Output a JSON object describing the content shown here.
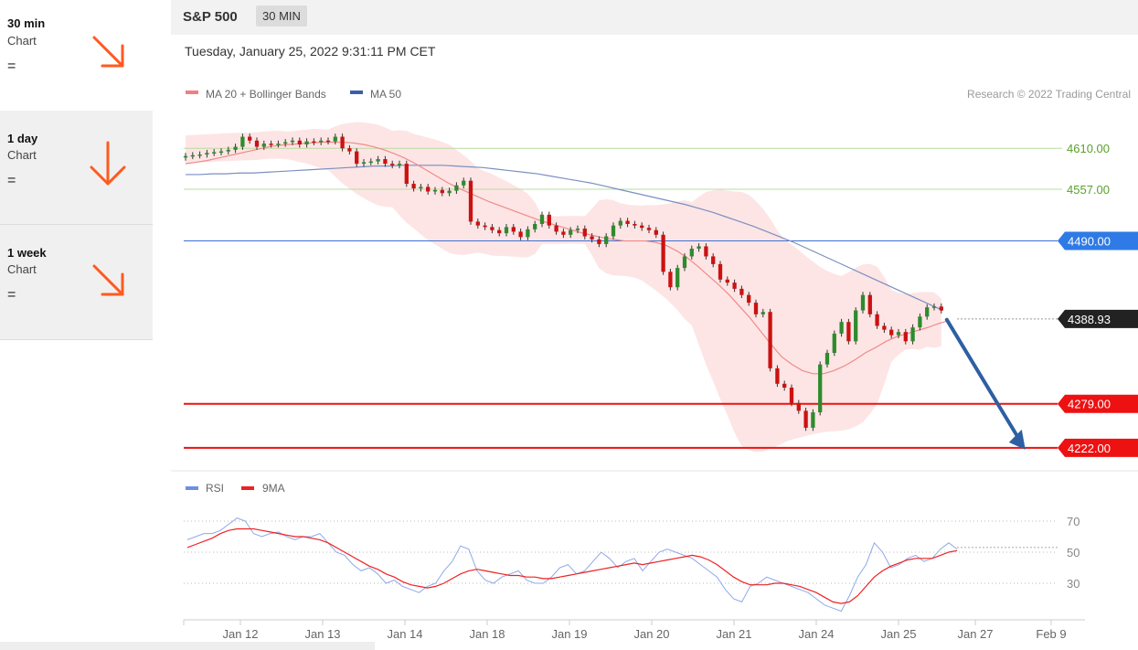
{
  "sidebar": {
    "items": [
      {
        "title": "30 min",
        "sub": "Chart",
        "sign": "=",
        "arrow": "arrow-down-right-icon"
      },
      {
        "title": "1 day",
        "sub": "Chart",
        "sign": "=",
        "arrow": "arrow-down-icon"
      },
      {
        "title": "1 week",
        "sub": "Chart",
        "sign": "=",
        "arrow": "arrow-down-right-icon"
      }
    ],
    "arrow_color": "#ff5a1f"
  },
  "header": {
    "title": "S&P 500",
    "timeframe": "30 MIN"
  },
  "chart_data": {
    "type": "candlestick",
    "timestamp": "Tuesday, January 25, 2022 9:31:11 PM CET",
    "credit": "Research © 2022 Trading Central",
    "legend": [
      {
        "name": "MA 20 + Bollinger Bands",
        "color": "#f08080"
      },
      {
        "name": "MA 50",
        "color": "#3b5ea8"
      }
    ],
    "ylim": [
      4210,
      4660
    ],
    "levels": [
      {
        "label": "4610.00",
        "value": 4610,
        "color": "#b8dca0",
        "text_color": "#5aa02c",
        "style": "flat"
      },
      {
        "label": "4557.00",
        "value": 4557,
        "color": "#b8dca0",
        "text_color": "#5aa02c",
        "style": "flat"
      },
      {
        "label": "4490.00",
        "value": 4490,
        "color": "#3f6fd4",
        "text_color": "#ffffff",
        "style": "tag",
        "fill": "#2e7ae6"
      },
      {
        "label": "4388.93",
        "value": 4388.93,
        "color": "#999999",
        "text_color": "#ffffff",
        "style": "tag",
        "fill": "#222222",
        "dashed": true
      },
      {
        "label": "4279.00",
        "value": 4279,
        "color": "#ee1111",
        "text_color": "#ffffff",
        "style": "tag",
        "fill": "#ee1111",
        "thick": true
      },
      {
        "label": "4222.00",
        "value": 4222,
        "color": "#ee1111",
        "text_color": "#ffffff",
        "style": "tag",
        "fill": "#ee1111",
        "thick": true
      }
    ],
    "projection": {
      "from_index": 94,
      "from_value": 4388,
      "to_value": 4222,
      "color": "#2e5fa3"
    },
    "x_ticks": [
      "Jan 12",
      "Jan 13",
      "Jan 14",
      "Jan 18",
      "Jan 19",
      "Jan 20",
      "Jan 21",
      "Jan 24",
      "Jan 25",
      "Jan 27",
      "Feb 9"
    ],
    "closes": [
      4600,
      4601,
      4602,
      4604,
      4605,
      4606,
      4608,
      4612,
      4625,
      4620,
      4612,
      4616,
      4615,
      4616,
      4618,
      4620,
      4615,
      4619,
      4618,
      4620,
      4619,
      4625,
      4610,
      4606,
      4590,
      4592,
      4593,
      4596,
      4590,
      4588,
      4590,
      4564,
      4558,
      4560,
      4554,
      4556,
      4552,
      4555,
      4562,
      4568,
      4515,
      4510,
      4508,
      4504,
      4500,
      4508,
      4502,
      4495,
      4505,
      4512,
      4524,
      4510,
      4502,
      4498,
      4504,
      4506,
      4496,
      4492,
      4486,
      4496,
      4510,
      4516,
      4512,
      4510,
      4507,
      4504,
      4498,
      4450,
      4430,
      4455,
      4470,
      4480,
      4483,
      4470,
      4460,
      4440,
      4436,
      4428,
      4420,
      4410,
      4395,
      4398,
      4325,
      4305,
      4300,
      4280,
      4270,
      4248,
      4268,
      4330,
      4345,
      4370,
      4385,
      4360,
      4400,
      4420,
      4395,
      4380,
      4375,
      4368,
      4372,
      4360,
      4378,
      4392,
      4404,
      4405,
      4400
    ],
    "ma20": [
      4590,
      4592,
      4594,
      4597,
      4600,
      4603,
      4606,
      4609,
      4612,
      4614,
      4615,
      4616,
      4617,
      4618,
      4618,
      4618,
      4617,
      4615,
      4612,
      4608,
      4603,
      4597,
      4590,
      4582,
      4574,
      4566,
      4559,
      4553,
      4547,
      4541,
      4536,
      4531,
      4526,
      4521,
      4516,
      4512,
      4508,
      4504,
      4500,
      4497,
      4494,
      4492,
      4490,
      4490,
      4490,
      4488,
      4484,
      4477,
      4468,
      4457,
      4445,
      4433,
      4420,
      4405,
      4390,
      4373,
      4356,
      4340,
      4330,
      4322,
      4318,
      4318,
      4322,
      4328,
      4336,
      4345,
      4352,
      4360,
      4366,
      4370,
      4374,
      4378,
      4383,
      4387
    ],
    "ma50": [
      4576,
      4576,
      4577,
      4577,
      4578,
      4578,
      4579,
      4580,
      4581,
      4582,
      4583,
      4584,
      4585,
      4586,
      4587,
      4587,
      4588,
      4588,
      4588,
      4588,
      4587,
      4586,
      4585,
      4583,
      4581,
      4579,
      4577,
      4574,
      4571,
      4568,
      4565,
      4561,
      4557,
      4553,
      4549,
      4545,
      4541,
      4537,
      4532,
      4527,
      4521,
      4515,
      4509,
      4502,
      4495,
      4488,
      4480,
      4472,
      4464,
      4456,
      4448,
      4440,
      4432,
      4424,
      4416,
      4408,
      4400
    ],
    "rsi": {
      "legend": [
        {
          "name": "RSI",
          "color": "#6f8fe0"
        },
        {
          "name": "9MA",
          "color": "#ee2222"
        }
      ],
      "ticks": [
        70,
        50,
        30
      ],
      "ylim": [
        10,
        80
      ],
      "values": [
        58,
        60,
        62,
        62,
        64,
        68,
        72,
        70,
        62,
        60,
        62,
        63,
        60,
        58,
        60,
        60,
        62,
        56,
        50,
        48,
        42,
        38,
        40,
        36,
        30,
        32,
        28,
        26,
        24,
        28,
        30,
        38,
        44,
        54,
        52,
        38,
        32,
        30,
        34,
        36,
        38,
        32,
        30,
        30,
        34,
        40,
        42,
        36,
        38,
        44,
        50,
        46,
        40,
        44,
        46,
        38,
        44,
        50,
        52,
        50,
        48,
        46,
        42,
        38,
        34,
        26,
        20,
        18,
        28,
        30,
        34,
        32,
        30,
        28,
        26,
        24,
        20,
        16,
        14,
        12,
        22,
        34,
        42,
        56,
        50,
        40,
        42,
        46,
        48,
        44,
        46,
        52,
        56,
        52
      ],
      "ma": [
        53,
        55,
        57,
        59,
        62,
        64,
        65,
        65,
        65,
        64,
        63,
        62,
        61,
        60,
        60,
        59,
        58,
        56,
        53,
        50,
        47,
        44,
        41,
        39,
        36,
        34,
        31,
        29,
        28,
        27,
        28,
        30,
        33,
        36,
        38,
        39,
        38,
        37,
        36,
        35,
        35,
        34,
        34,
        33,
        33,
        34,
        35,
        36,
        37,
        38,
        39,
        40,
        41,
        42,
        43,
        42,
        43,
        44,
        45,
        46,
        47,
        48,
        47,
        45,
        42,
        38,
        34,
        31,
        29,
        29,
        29,
        30,
        30,
        29,
        28,
        26,
        24,
        21,
        18,
        17,
        18,
        22,
        28,
        34,
        38,
        41,
        43,
        45,
        46,
        46,
        46,
        48,
        50,
        51
      ]
    }
  }
}
